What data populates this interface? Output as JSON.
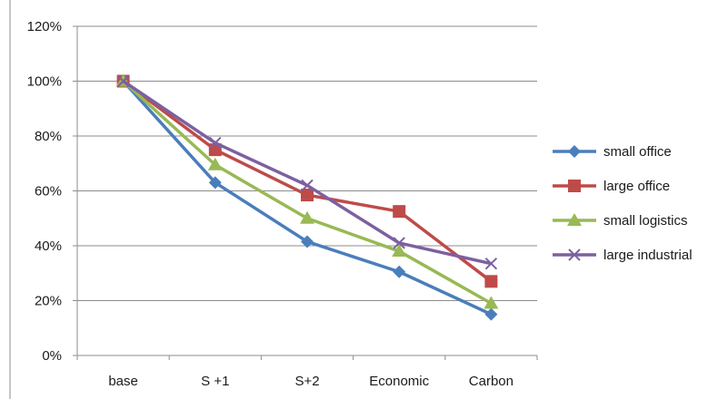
{
  "chart_data": {
    "type": "line",
    "title": "",
    "xlabel": "",
    "ylabel": "",
    "categories": [
      "base",
      "S +1",
      "S+2",
      "Economic",
      "Carbon"
    ],
    "y_ticks": [
      "0%",
      "20%",
      "40%",
      "60%",
      "80%",
      "100%",
      "120%"
    ],
    "ylim": [
      0,
      120
    ],
    "y_unit": "%",
    "grid": "horizontal",
    "legend_position": "right",
    "series": [
      {
        "name": "small office",
        "color": "#4a7ebb",
        "marker": "diamond",
        "values": [
          100,
          63,
          41.5,
          30.5,
          15
        ]
      },
      {
        "name": "large office",
        "color": "#be4b48",
        "marker": "square",
        "values": [
          100,
          75,
          58.5,
          52.5,
          27
        ]
      },
      {
        "name": "small logistics",
        "color": "#98b954",
        "marker": "triangle",
        "values": [
          100,
          69.5,
          50,
          38,
          19
        ]
      },
      {
        "name": "large industrial",
        "color": "#7d60a0",
        "marker": "x",
        "values": [
          100,
          77.5,
          62,
          41,
          33.5
        ]
      }
    ]
  }
}
